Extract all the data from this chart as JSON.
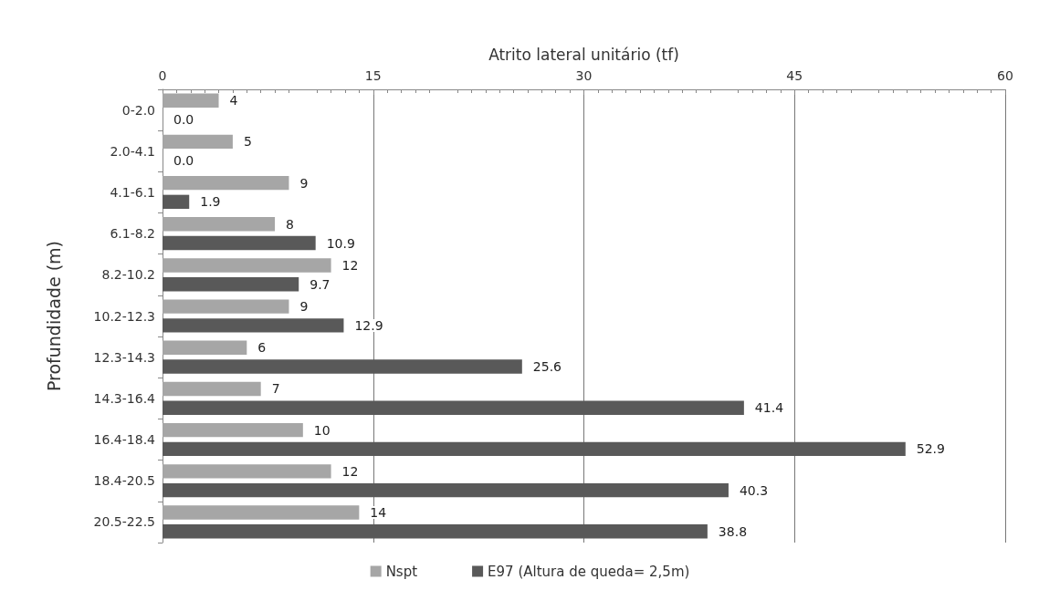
{
  "chart_data": {
    "type": "bar",
    "orientation": "horizontal",
    "xlabel": "Atrito lateral unitário (tf)",
    "ylabel": "Profundidade (m)",
    "categories": [
      "0-2.0",
      "2.0-4.1",
      "4.1-6.1",
      "6.1-8.2",
      "8.2-10.2",
      "10.2-12.3",
      "12.3-14.3",
      "14.3-16.4",
      "16.4-18.4",
      "18.4-20.5",
      "20.5-22.5"
    ],
    "series": [
      {
        "name": "Nspt",
        "color": "#a6a6a6",
        "values": [
          4,
          5,
          9,
          8,
          12,
          9,
          6,
          7,
          10,
          12,
          14
        ],
        "value_labels": [
          "4",
          "5",
          "9",
          "8",
          "12",
          "9",
          "6",
          "7",
          "10",
          "12",
          "14"
        ]
      },
      {
        "name": "E97 (Altura de queda= 2,5m)",
        "color": "#595959",
        "values": [
          0,
          0,
          1.9,
          10.9,
          9.7,
          12.9,
          25.6,
          41.4,
          52.9,
          40.3,
          38.8
        ],
        "value_labels": [
          "0.0",
          "0.0",
          "1.9",
          "10.9",
          "9.7",
          "12.9",
          "25.6",
          "41.4",
          "52.9",
          "40.3",
          "38.8"
        ]
      }
    ],
    "xlim": [
      0,
      60
    ],
    "xticks": [
      0,
      15,
      30,
      45,
      60
    ],
    "grid": "x",
    "legend": "bottom"
  }
}
